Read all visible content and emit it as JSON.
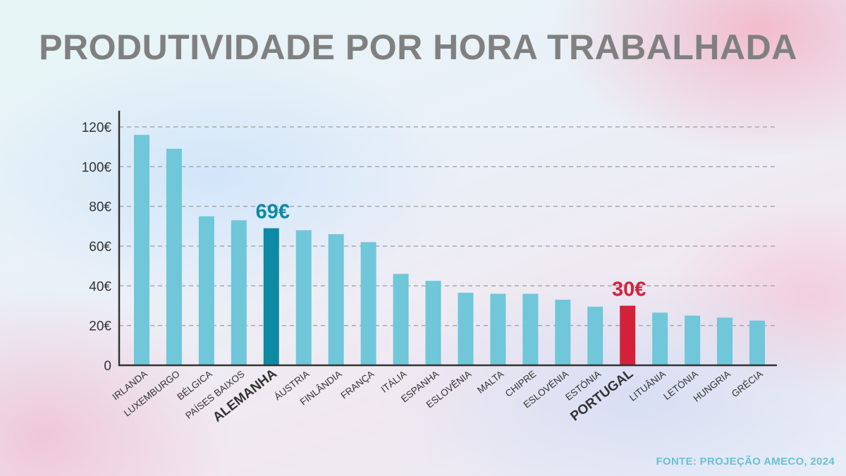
{
  "colors": {
    "bar": "#6fc7d9",
    "highlight_germany": "#0d8aa3",
    "highlight_portugal": "#d4213a",
    "axis": "#333333",
    "grid": "#a8a8a8"
  },
  "chart_data": {
    "type": "bar",
    "title": "PRODUTIVIDADE POR HORA TRABALHADA",
    "xlabel": "",
    "ylabel": "",
    "ylim": [
      0,
      120
    ],
    "yticks": [
      {
        "value": 0,
        "label": "0"
      },
      {
        "value": 20,
        "label": "20€"
      },
      {
        "value": 40,
        "label": "40€"
      },
      {
        "value": 60,
        "label": "60€"
      },
      {
        "value": 80,
        "label": "80€"
      },
      {
        "value": 100,
        "label": "100€"
      },
      {
        "value": 120,
        "label": "120€"
      }
    ],
    "grid": "horizontal dashed",
    "categories": [
      "IRLANDA",
      "LUXEMBURGO",
      "BÉLGICA",
      "PAÍSES BAIXOS",
      "ALEMANHA",
      "ÁUSTRIA",
      "FINLÂNDIA",
      "FRANÇA",
      "ITÁLIA",
      "ESPANHA",
      "ESLOVÊNIA",
      "MALTA",
      "CHIPRE",
      "ESLOVÉNIA",
      "ESTÓNIA",
      "PORTUGAL",
      "LITUÂNIA",
      "LETÓNIA",
      "HUNGRIA",
      "GRÉCIA"
    ],
    "values": [
      116,
      109,
      75,
      73,
      69,
      68,
      66,
      62,
      46,
      42.5,
      36.5,
      36,
      36,
      33,
      29.5,
      30,
      26.5,
      25,
      24,
      22.5
    ],
    "highlights": [
      {
        "category": "ALEMANHA",
        "label": "69€",
        "color": "#0d8aa3"
      },
      {
        "category": "PORTUGAL",
        "label": "30€",
        "color": "#d4213a"
      }
    ]
  },
  "source": "FONTE: PROJEÇÃO AMECO, 2024"
}
